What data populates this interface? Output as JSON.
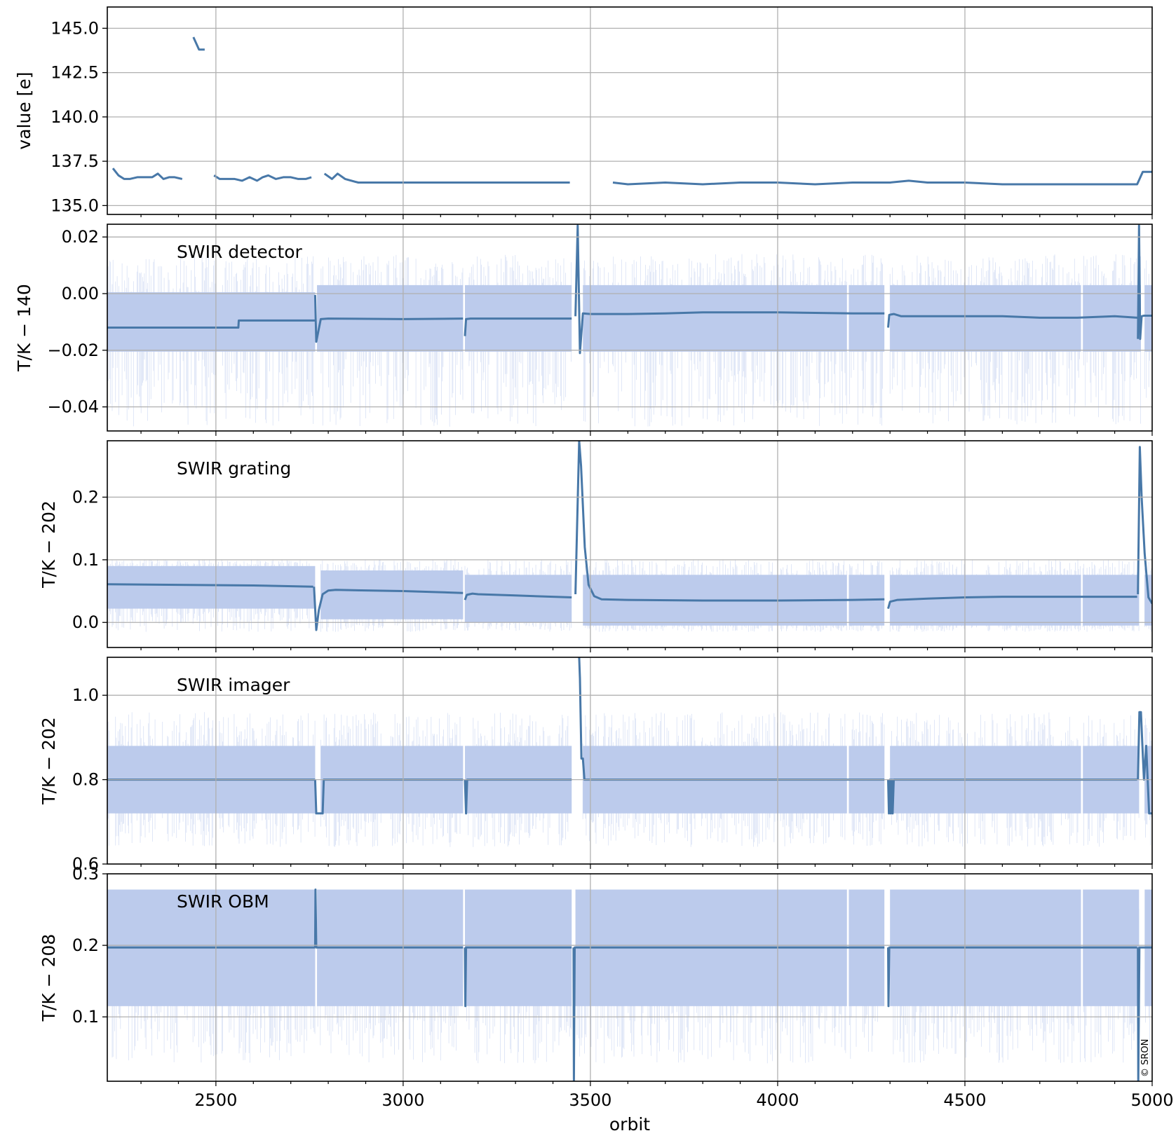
{
  "chart_data": {
    "type": "line",
    "xlabel": "orbit",
    "xlim": [
      2210,
      5000
    ],
    "xticks": [
      2500,
      3000,
      3500,
      4000,
      4500,
      5000
    ],
    "colors": {
      "line": "#4878a8",
      "band": "#bccbec",
      "spike": "#a8bde8",
      "grid": "#b0b0b0"
    },
    "copyright": "© SRON",
    "panels": [
      {
        "id": "value",
        "annotation": "",
        "ylabel": "value [e]",
        "ylim": [
          134.5,
          146.2
        ],
        "yticks": [
          135.0,
          137.5,
          140.0,
          142.5,
          145.0
        ],
        "tick_decimals": 1,
        "has_band": false,
        "series": [
          {
            "x": [
              2225,
              2240,
              2255,
              2270,
              2290,
              2310,
              2330,
              2345,
              2360,
              2375,
              2390,
              2410
            ],
            "y": [
              137.1,
              136.7,
              136.5,
              136.5,
              136.6,
              136.6,
              136.6,
              136.8,
              136.5,
              136.6,
              136.6,
              136.5
            ]
          },
          {
            "x": [
              2440,
              2455,
              2470
            ],
            "y": [
              144.5,
              143.8,
              143.8
            ]
          },
          {
            "x": [
              2495,
              2510,
              2530,
              2550,
              2570,
              2590,
              2610,
              2625,
              2640,
              2660,
              2680,
              2700,
              2720,
              2740,
              2755
            ],
            "y": [
              136.7,
              136.5,
              136.5,
              136.5,
              136.4,
              136.6,
              136.4,
              136.6,
              136.7,
              136.5,
              136.6,
              136.6,
              136.5,
              136.5,
              136.6
            ]
          },
          {
            "x": [
              2790,
              2810,
              2825,
              2845,
              2880,
              2920,
              3000,
              3100,
              3200,
              3300,
              3400,
              3445
            ],
            "y": [
              136.8,
              136.5,
              136.8,
              136.5,
              136.3,
              136.3,
              136.3,
              136.3,
              136.3,
              136.3,
              136.3,
              136.3
            ]
          },
          {
            "x": [
              3560,
              3600,
              3700,
              3800,
              3900,
              4000,
              4100,
              4200,
              4300,
              4350,
              4400,
              4500,
              4600,
              4700,
              4800,
              4900,
              4960,
              4975,
              5000
            ],
            "y": [
              136.3,
              136.2,
              136.3,
              136.2,
              136.3,
              136.3,
              136.2,
              136.3,
              136.3,
              136.4,
              136.3,
              136.3,
              136.2,
              136.2,
              136.2,
              136.2,
              136.2,
              136.9,
              136.9
            ]
          }
        ]
      },
      {
        "id": "detector",
        "annotation": "SWIR detector",
        "ylabel": "T/K − 140",
        "ylim": [
          -0.0485,
          0.0245
        ],
        "yticks": [
          -0.04,
          -0.02,
          0.0,
          0.02
        ],
        "tick_decimals": 2,
        "has_band": true,
        "bands": [
          {
            "x0": 2210,
            "x1": 2765,
            "lo": -0.0205,
            "hi": 0.0005
          },
          {
            "x0": 2770,
            "x1": 3160,
            "lo": -0.0205,
            "hi": 0.003
          },
          {
            "x0": 3165,
            "x1": 3450,
            "lo": -0.0205,
            "hi": 0.003
          },
          {
            "x0": 3480,
            "x1": 4185,
            "lo": -0.0205,
            "hi": 0.003
          },
          {
            "x0": 4190,
            "x1": 4285,
            "lo": -0.0205,
            "hi": 0.003
          },
          {
            "x0": 4300,
            "x1": 4810,
            "lo": -0.0205,
            "hi": 0.003
          },
          {
            "x0": 4815,
            "x1": 4970,
            "lo": -0.0205,
            "hi": 0.003
          },
          {
            "x0": 4980,
            "x1": 5000,
            "lo": -0.0205,
            "hi": 0.003
          }
        ],
        "spike_range": [
          -0.047,
          0.014
        ],
        "series": [
          {
            "x": [
              2210,
              2560,
              2561,
              2765
            ],
            "y": [
              -0.012,
              -0.012,
              -0.0095,
              -0.0095
            ]
          },
          {
            "x": [
              2765,
              2768,
              2780,
              2800,
              3000,
              3160
            ],
            "y": [
              -0.0005,
              -0.017,
              -0.009,
              -0.0088,
              -0.009,
              -0.0088
            ]
          },
          {
            "x": [
              3165,
              3168,
              3180,
              3200,
              3300,
              3450
            ],
            "y": [
              -0.015,
              -0.009,
              -0.0088,
              -0.0088,
              -0.0088,
              -0.0088
            ]
          },
          {
            "x": [
              3460,
              3466,
              3472,
              3480,
              3500,
              3600,
              3700,
              3800,
              4000,
              4100,
              4200,
              4285
            ],
            "y": [
              -0.008,
              0.024,
              -0.021,
              -0.007,
              -0.0072,
              -0.0072,
              -0.007,
              -0.0066,
              -0.0066,
              -0.0068,
              -0.007,
              -0.007
            ]
          },
          {
            "x": [
              4295,
              4298,
              4310,
              4330,
              4500,
              4600,
              4700,
              4800,
              4900,
              4960
            ],
            "y": [
              -0.012,
              -0.0075,
              -0.0072,
              -0.008,
              -0.008,
              -0.008,
              -0.0085,
              -0.0085,
              -0.008,
              -0.0085
            ]
          },
          {
            "x": [
              4962,
              4965,
              4968,
              4972,
              4978,
              5000
            ],
            "y": [
              -0.016,
              0.024,
              -0.016,
              -0.008,
              -0.0078,
              -0.0078
            ]
          }
        ]
      },
      {
        "id": "grating",
        "annotation": "SWIR grating",
        "ylabel": "T/K − 202",
        "ylim": [
          -0.04,
          0.29
        ],
        "yticks": [
          0.0,
          0.1,
          0.2
        ],
        "tick_decimals": 1,
        "has_band": true,
        "bands": [
          {
            "x0": 2210,
            "x1": 2765,
            "lo": 0.022,
            "hi": 0.09
          },
          {
            "x0": 2780,
            "x1": 3160,
            "lo": 0.005,
            "hi": 0.083
          },
          {
            "x0": 3165,
            "x1": 3450,
            "lo": 0.0,
            "hi": 0.076
          },
          {
            "x0": 3480,
            "x1": 4185,
            "lo": -0.005,
            "hi": 0.076
          },
          {
            "x0": 4190,
            "x1": 4285,
            "lo": -0.005,
            "hi": 0.076
          },
          {
            "x0": 4300,
            "x1": 4810,
            "lo": -0.005,
            "hi": 0.076
          },
          {
            "x0": 4815,
            "x1": 4965,
            "lo": -0.005,
            "hi": 0.076
          },
          {
            "x0": 4980,
            "x1": 5000,
            "lo": -0.005,
            "hi": 0.076
          }
        ],
        "spike_range": [
          -0.015,
          0.1
        ],
        "series": [
          {
            "x": [
              2210,
              2400,
              2600,
              2760
            ],
            "y": [
              0.061,
              0.06,
              0.059,
              0.057
            ]
          },
          {
            "x": [
              2762,
              2768,
              2775,
              2785,
              2800,
              2820,
              3000,
              3160
            ],
            "y": [
              0.057,
              -0.012,
              0.02,
              0.045,
              0.051,
              0.052,
              0.05,
              0.047
            ]
          },
          {
            "x": [
              3165,
              3170,
              3185,
              3200,
              3300,
              3450
            ],
            "y": [
              0.036,
              0.044,
              0.046,
              0.045,
              0.043,
              0.04
            ]
          },
          {
            "x": [
              3460,
              3470,
              3475,
              3485,
              3495,
              3510,
              3530,
              3600,
              3800,
              4000,
              4200,
              4285
            ],
            "y": [
              0.045,
              0.29,
              0.25,
              0.12,
              0.06,
              0.042,
              0.037,
              0.036,
              0.035,
              0.035,
              0.036,
              0.037
            ]
          },
          {
            "x": [
              4295,
              4300,
              4320,
              4400,
              4500,
              4600,
              4800,
              4960
            ],
            "y": [
              0.022,
              0.033,
              0.036,
              0.038,
              0.04,
              0.041,
              0.041,
              0.041
            ]
          },
          {
            "x": [
              4962,
              4967,
              4972,
              4980,
              4990,
              5000
            ],
            "y": [
              0.045,
              0.28,
              0.2,
              0.11,
              0.04,
              0.03
            ]
          }
        ]
      },
      {
        "id": "imager",
        "annotation": "SWIR imager",
        "ylabel": "T/K − 202",
        "ylim": [
          0.6,
          1.09
        ],
        "yticks": [
          0.6,
          0.8,
          1.0
        ],
        "tick_decimals": 1,
        "has_band": true,
        "bands": [
          {
            "x0": 2210,
            "x1": 2765,
            "lo": 0.72,
            "hi": 0.88
          },
          {
            "x0": 2780,
            "x1": 3160,
            "lo": 0.72,
            "hi": 0.88
          },
          {
            "x0": 3165,
            "x1": 3450,
            "lo": 0.72,
            "hi": 0.88
          },
          {
            "x0": 3480,
            "x1": 4185,
            "lo": 0.72,
            "hi": 0.88
          },
          {
            "x0": 4190,
            "x1": 4285,
            "lo": 0.72,
            "hi": 0.88
          },
          {
            "x0": 4300,
            "x1": 4810,
            "lo": 0.72,
            "hi": 0.88
          },
          {
            "x0": 4815,
            "x1": 4965,
            "lo": 0.72,
            "hi": 0.88
          },
          {
            "x0": 4980,
            "x1": 5000,
            "lo": 0.72,
            "hi": 0.88
          }
        ],
        "spike_range": [
          0.64,
          0.96
        ],
        "series": [
          {
            "x": [
              2210,
              2765
            ],
            "y": [
              0.8,
              0.8
            ]
          },
          {
            "x": [
              2765,
              2768,
              2785,
              2788,
              3160
            ],
            "y": [
              0.8,
              0.72,
              0.72,
              0.8,
              0.8
            ]
          },
          {
            "x": [
              3165,
              3168,
              3171,
              3450
            ],
            "y": [
              0.8,
              0.72,
              0.8,
              0.8
            ]
          },
          {
            "x": [
              3470,
              3472,
              3476,
              3480,
              3484,
              3490,
              4285
            ],
            "y": [
              1.09,
              1.04,
              0.85,
              0.85,
              0.8,
              0.8,
              0.8
            ]
          },
          {
            "x": [
              4295,
              4297,
              4300,
              4302,
              4305,
              4307,
              4310,
              4312,
              4960
            ],
            "y": [
              0.8,
              0.72,
              0.8,
              0.72,
              0.8,
              0.72,
              0.8,
              0.8,
              0.8
            ]
          },
          {
            "x": [
              4962,
              4966,
              4970,
              4974,
              4978,
              4984,
              4988,
              4992,
              5000
            ],
            "y": [
              0.8,
              0.96,
              0.96,
              0.88,
              0.8,
              0.88,
              0.8,
              0.72,
              0.72
            ]
          }
        ]
      },
      {
        "id": "obm",
        "annotation": "SWIR OBM",
        "ylabel": "T/K − 208",
        "ylim": [
          0.01,
          0.3
        ],
        "yticks": [
          0.1,
          0.2,
          0.3
        ],
        "tick_decimals": 1,
        "has_band": true,
        "bands": [
          {
            "x0": 2210,
            "x1": 2765,
            "lo": 0.115,
            "hi": 0.278
          },
          {
            "x0": 2770,
            "x1": 3160,
            "lo": 0.115,
            "hi": 0.278
          },
          {
            "x0": 3165,
            "x1": 3450,
            "lo": 0.115,
            "hi": 0.278
          },
          {
            "x0": 3460,
            "x1": 4185,
            "lo": 0.115,
            "hi": 0.278
          },
          {
            "x0": 4190,
            "x1": 4285,
            "lo": 0.115,
            "hi": 0.278
          },
          {
            "x0": 4300,
            "x1": 4810,
            "lo": 0.115,
            "hi": 0.278
          },
          {
            "x0": 4815,
            "x1": 4965,
            "lo": 0.115,
            "hi": 0.278
          },
          {
            "x0": 4980,
            "x1": 5000,
            "lo": 0.115,
            "hi": 0.278
          }
        ],
        "spike_range": [
          0.035,
          0.2
        ],
        "series": [
          {
            "x": [
              2210,
              2765
            ],
            "y": [
              0.197,
              0.197
            ]
          },
          {
            "x": [
              2765,
              2766,
              2768,
              3160
            ],
            "y": [
              0.197,
              0.278,
              0.197,
              0.197
            ]
          },
          {
            "x": [
              3165,
              3166,
              3168,
              3450
            ],
            "y": [
              0.197,
              0.115,
              0.197,
              0.197
            ]
          },
          {
            "x": [
              3455,
              3456,
              3458,
              4285
            ],
            "y": [
              0.197,
              0.01,
              0.197,
              0.197
            ]
          },
          {
            "x": [
              4295,
              4296,
              4298,
              4960
            ],
            "y": [
              0.197,
              0.115,
              0.197,
              0.197
            ]
          },
          {
            "x": [
              4962,
              4963,
              4966,
              5000
            ],
            "y": [
              0.197,
              0.01,
              0.197,
              0.197
            ]
          }
        ]
      }
    ]
  }
}
